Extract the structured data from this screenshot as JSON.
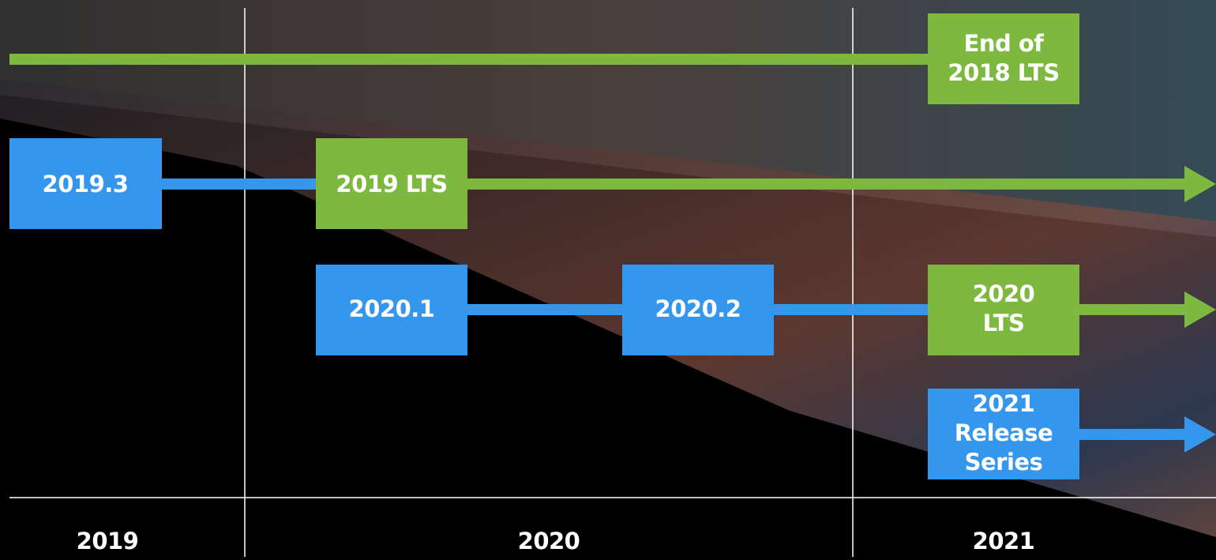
{
  "nodes": [
    {
      "lines": [
        "End of",
        "2018 LTS"
      ]
    },
    {
      "lines": [
        "2019.3"
      ]
    },
    {
      "lines": [
        "2019 LTS"
      ]
    },
    {
      "lines": [
        "2020.1"
      ]
    },
    {
      "lines": [
        "2020.2"
      ]
    },
    {
      "lines": [
        "2020",
        "LTS"
      ]
    },
    {
      "lines": [
        "2021",
        "Release",
        "Series"
      ]
    }
  ],
  "years": [
    "2019",
    "2020",
    "2021"
  ]
}
